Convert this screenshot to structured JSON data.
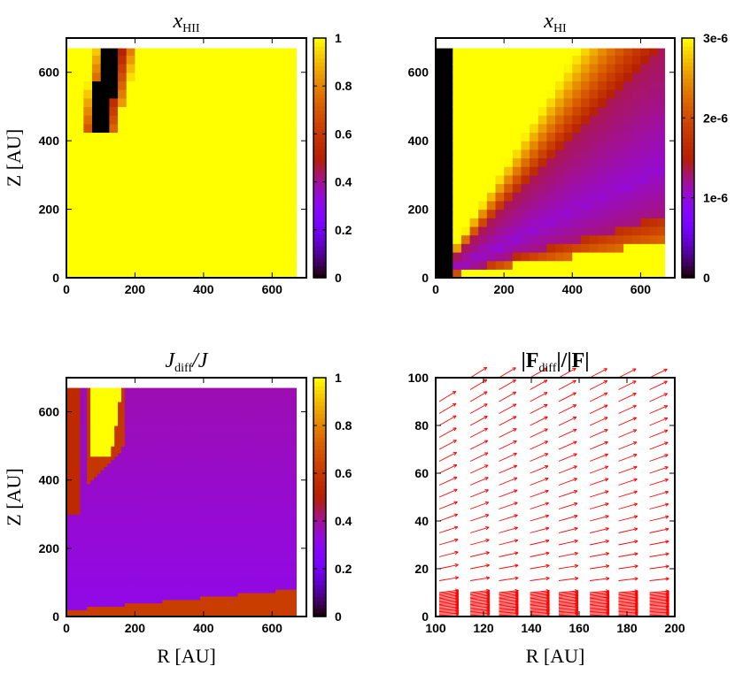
{
  "figure": {
    "axis_label_z": "Z [AU]",
    "axis_label_r": "R [AU]"
  },
  "chart_data": [
    {
      "id": "xhii",
      "type": "heatmap",
      "title": "x_HII",
      "title_main": "x",
      "title_sub": "HII",
      "title_tail": "",
      "xlabel": "",
      "ylabel": "Z [AU]",
      "xlim": [
        0,
        700
      ],
      "ylim": [
        0,
        700
      ],
      "xticks": [
        0,
        200,
        400,
        600
      ],
      "yticks": [
        0,
        200,
        400,
        600
      ],
      "colorbar": {
        "min": 0,
        "max": 1,
        "ticks": [
          0,
          0.2,
          0.4,
          0.6,
          0.8,
          1
        ],
        "tick_labels": [
          "0",
          "0.2",
          "0.4",
          "0.6",
          "0.8",
          "1"
        ],
        "colormap": "gnuplot-pm3d"
      },
      "data_extent": {
        "rmax": 670,
        "zmax": 670
      },
      "grid": "none",
      "legend": "none"
    },
    {
      "id": "xhi",
      "type": "heatmap",
      "title": "x_HI",
      "title_main": "x",
      "title_sub": "HI",
      "title_tail": "",
      "xlabel": "",
      "ylabel": "",
      "xlim": [
        0,
        700
      ],
      "ylim": [
        0,
        700
      ],
      "xticks": [
        0,
        200,
        400,
        600
      ],
      "yticks": [
        0,
        200,
        400,
        600
      ],
      "colorbar": {
        "min": 0,
        "max": 3e-06,
        "ticks": [
          0,
          1e-06,
          2e-06,
          3e-06
        ],
        "tick_labels": [
          "0",
          "1e-6",
          "2e-6",
          "3e-6"
        ],
        "colormap": "gnuplot-pm3d"
      },
      "data_extent": {
        "rmax": 670,
        "zmax": 670
      },
      "grid": "none",
      "legend": "none"
    },
    {
      "id": "jratio",
      "type": "heatmap",
      "title": "J_diff/J",
      "title_main": "J",
      "title_sub": "diff",
      "title_tail": "/J",
      "xlabel": "R [AU]",
      "ylabel": "Z [AU]",
      "xlim": [
        0,
        700
      ],
      "ylim": [
        0,
        700
      ],
      "xticks": [
        0,
        200,
        400,
        600
      ],
      "yticks": [
        0,
        200,
        400,
        600
      ],
      "colorbar": {
        "min": 0,
        "max": 1,
        "ticks": [
          0,
          0.2,
          0.4,
          0.6,
          0.8,
          1
        ],
        "tick_labels": [
          "0",
          "0.2",
          "0.4",
          "0.6",
          "0.8",
          "1"
        ],
        "colormap": "gnuplot-pm3d"
      },
      "data_extent": {
        "rmax": 670,
        "zmax": 670
      },
      "grid": "none",
      "legend": "none"
    },
    {
      "id": "fratio",
      "type": "vector-field",
      "title": "|F_diff|/|F|",
      "title_main": "|F",
      "title_sub": "diff",
      "title_tail": "|/|F|",
      "xlabel": "R [AU]",
      "ylabel": "",
      "xlim": [
        100,
        200
      ],
      "ylim": [
        0,
        100
      ],
      "xticks": [
        100,
        120,
        140,
        160,
        180,
        200
      ],
      "yticks": [
        0,
        20,
        40,
        60,
        80,
        100
      ],
      "arrow_columns_r": [
        100,
        113,
        125,
        138,
        150,
        163,
        175,
        188
      ],
      "arrow_color": "#ff0000",
      "grid": "none",
      "legend": "none"
    }
  ]
}
